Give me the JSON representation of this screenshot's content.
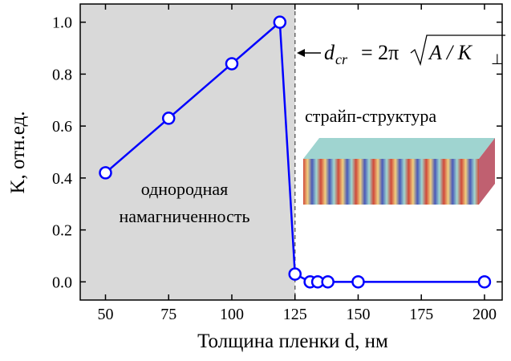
{
  "chart_data": {
    "type": "line",
    "x_label": "Толщина пленки d, нм",
    "y_label": "K, отн.ед.",
    "annotations": {
      "region_left": [
        "однородная",
        "намагниченность"
      ],
      "region_right": "страйп-структура",
      "formula": [
        "d",
        "cr",
        "= 2π",
        "A / K",
        "⊥"
      ]
    },
    "shaded_xmax": 125,
    "series": [
      {
        "color": "#0000ff",
        "x": [
          50,
          75,
          100,
          119,
          125,
          131,
          134,
          138,
          150,
          200
        ],
        "values": [
          0.42,
          0.63,
          0.84,
          1.0,
          0.03,
          0,
          0,
          0,
          0,
          0
        ]
      }
    ],
    "xlim": [
      40,
      207
    ],
    "ylim": [
      -0.07,
      1.07
    ],
    "xticks": [
      50,
      75,
      100,
      125,
      150,
      175,
      200
    ],
    "yticks": [
      {
        "value": 0,
        "label": "0.0"
      },
      0.2,
      0.4,
      0.6,
      0.8,
      {
        "value": 1,
        "label": "1.0"
      }
    ]
  }
}
